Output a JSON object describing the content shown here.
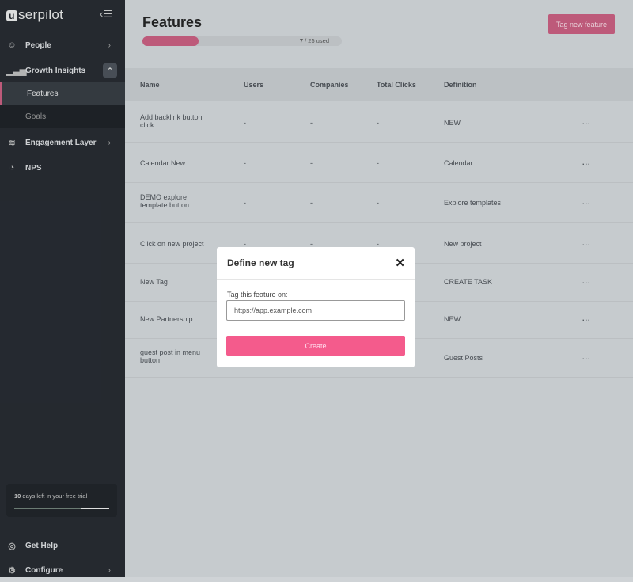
{
  "sidebar": {
    "logo": "userpilot",
    "collapse_icon": "‹☰",
    "items": [
      {
        "label": "People",
        "icon": "people-icon"
      },
      {
        "label": "Growth Insights",
        "icon": "bar-chart-icon"
      },
      {
        "label": "Engagement Layer",
        "icon": "layers-icon"
      },
      {
        "label": "NPS",
        "icon": "pie-icon"
      }
    ],
    "sub_items": [
      {
        "label": "Features",
        "active": true
      },
      {
        "label": "Goals"
      }
    ],
    "trial": {
      "days": "10",
      "text": " days left in your free trial",
      "progress": 0.7
    },
    "footer": [
      {
        "label": "Get Help"
      },
      {
        "label": "Configure"
      }
    ]
  },
  "header": {
    "title": "Features",
    "usage": "7",
    "usage_rest": " / 25 used",
    "usage_fraction": 0.28,
    "tag_button": "Tag new feature"
  },
  "table": {
    "columns": [
      "Name",
      "Users",
      "Companies",
      "Total Clicks",
      "Definition"
    ],
    "rows": [
      {
        "name": "Add backlink button click",
        "users": "-",
        "companies": "-",
        "clicks": "-",
        "definition": "NEW"
      },
      {
        "name": "Calendar New",
        "users": "-",
        "companies": "-",
        "clicks": "-",
        "definition": "Calendar"
      },
      {
        "name": "DEMO explore template button",
        "users": "-",
        "companies": "-",
        "clicks": "-",
        "definition": "Explore templates"
      },
      {
        "name": "Click on new project",
        "users": "-",
        "companies": "-",
        "clicks": "-",
        "definition": "New project"
      },
      {
        "name": "New Tag",
        "users": "",
        "companies": "",
        "clicks": "",
        "definition": "CREATE TASK"
      },
      {
        "name": "New Partnership",
        "users": "",
        "companies": "",
        "clicks": "",
        "definition": "NEW"
      },
      {
        "name": "guest post in menu button",
        "users": "",
        "companies": "",
        "clicks": "",
        "definition": "Guest Posts"
      }
    ],
    "more": "..."
  },
  "modal": {
    "title": "Define new tag",
    "close": "✕",
    "label": "Tag this feature on:",
    "value": "https://app.example.com",
    "create": "Create"
  },
  "colors": {
    "accent": "#f45b8c",
    "sidebar": "#25292f"
  }
}
